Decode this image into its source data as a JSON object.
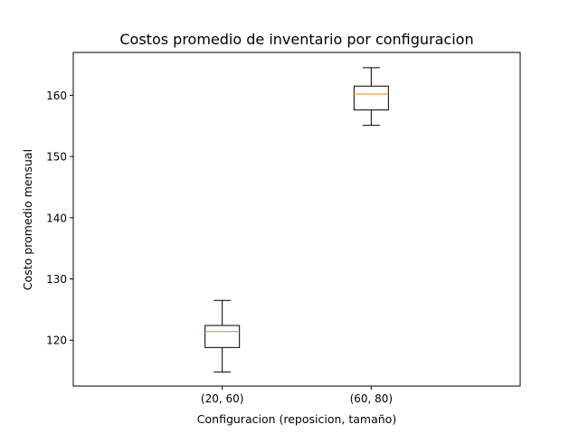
{
  "chart_data": {
    "type": "box",
    "title": "Costos promedio de inventario por configuracion",
    "xlabel": "Configuracion (reposicion, tamaño)",
    "ylabel": "Costo promedio mensual",
    "ylim": [
      112.5,
      167
    ],
    "yticks": [
      120,
      130,
      140,
      150,
      160
    ],
    "grid": false,
    "categories": [
      "(20, 60)",
      "(60, 80)"
    ],
    "boxes": [
      {
        "category": "(20, 60)",
        "whisker_low": 114.8,
        "q1": 118.8,
        "median": 121.4,
        "q3": 122.4,
        "whisker_high": 126.5
      },
      {
        "category": "(60, 80)",
        "whisker_low": 155.1,
        "q1": 157.6,
        "median": 160.2,
        "q3": 161.5,
        "whisker_high": 164.5
      }
    ],
    "colors": {
      "box": "#000000",
      "median": "#ff7f0e"
    }
  }
}
